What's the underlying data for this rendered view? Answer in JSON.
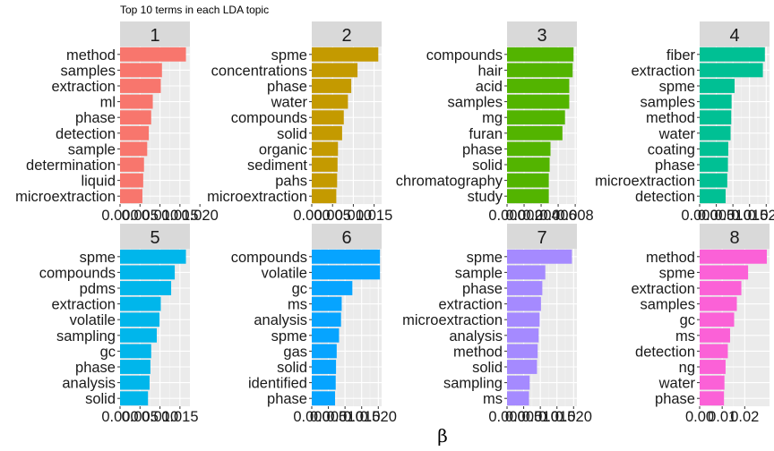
{
  "chart_data": {
    "type": "bar",
    "title": "Top 10 terms in each LDA topic",
    "xlabel": "β",
    "facets": [
      {
        "label": "1",
        "terms": [
          "method",
          "samples",
          "extraction",
          "ml",
          "phase",
          "detection",
          "sample",
          "determination",
          "liquid",
          "microextraction"
        ],
        "values": [
          0.0165,
          0.0105,
          0.0102,
          0.0082,
          0.0078,
          0.0072,
          0.0068,
          0.006,
          0.0058,
          0.0056
        ],
        "xlim": [
          0,
          0.0175
        ],
        "ticks": [
          0.0,
          0.005,
          0.01,
          0.015,
          0.02
        ],
        "tick_labels": [
          "0.000",
          "0.005",
          "0.010",
          "0.015",
          "0.020"
        ],
        "color": "#F8766D"
      },
      {
        "label": "2",
        "terms": [
          "spme",
          "concentrations",
          "phase",
          "water",
          "compounds",
          "solid",
          "organic",
          "sediment",
          "pahs",
          "microextraction"
        ],
        "values": [
          0.016,
          0.011,
          0.0095,
          0.0087,
          0.0077,
          0.0073,
          0.0063,
          0.0062,
          0.0061,
          0.0059
        ],
        "xlim": [
          0,
          0.0168
        ],
        "ticks": [
          0.0,
          0.005,
          0.01,
          0.015
        ],
        "tick_labels": [
          "0.000",
          "0.005",
          "0.010",
          "0.015"
        ],
        "color": "#C49A00"
      },
      {
        "label": "3",
        "terms": [
          "compounds",
          "hair",
          "acid",
          "samples",
          "mg",
          "furan",
          "phase",
          "solid",
          "chromatography",
          "study"
        ],
        "values": [
          0.0078,
          0.0077,
          0.0073,
          0.0073,
          0.0068,
          0.0065,
          0.0051,
          0.005,
          0.0049,
          0.0049
        ],
        "xlim": [
          0,
          0.0082
        ],
        "ticks": [
          0.0,
          0.002,
          0.004,
          0.006,
          0.008
        ],
        "tick_labels": [
          "0.000",
          "0.002",
          "0.004",
          "0.006",
          "0.008"
        ],
        "color": "#53B400"
      },
      {
        "label": "4",
        "terms": [
          "fiber",
          "extraction",
          "spme",
          "samples",
          "method",
          "water",
          "coating",
          "phase",
          "microextraction",
          "detection"
        ],
        "values": [
          0.0196,
          0.019,
          0.0105,
          0.0096,
          0.0095,
          0.0093,
          0.0086,
          0.0085,
          0.0083,
          0.0078
        ],
        "xlim": [
          0,
          0.021
        ],
        "ticks": [
          0.0,
          0.005,
          0.01,
          0.015,
          0.02
        ],
        "tick_labels": [
          "0.000",
          "0.005",
          "0.010",
          "0.015",
          "0.020"
        ],
        "color": "#00C094"
      },
      {
        "label": "5",
        "terms": [
          "spme",
          "compounds",
          "pdms",
          "extraction",
          "volatile",
          "sampling",
          "gc",
          "phase",
          "analysis",
          "solid"
        ],
        "values": [
          0.0165,
          0.0137,
          0.0128,
          0.0102,
          0.0099,
          0.0092,
          0.0078,
          0.0076,
          0.0074,
          0.007
        ],
        "xlim": [
          0,
          0.0175
        ],
        "ticks": [
          0.0,
          0.005,
          0.01,
          0.015
        ],
        "tick_labels": [
          "0.000",
          "0.005",
          "0.010",
          "0.015"
        ],
        "color": "#00B6EB"
      },
      {
        "label": "6",
        "terms": [
          "compounds",
          "volatile",
          "gc",
          "ms",
          "analysis",
          "spme",
          "gas",
          "solid",
          "identified",
          "phase"
        ],
        "values": [
          0.0205,
          0.0205,
          0.0122,
          0.009,
          0.0088,
          0.0082,
          0.0075,
          0.0073,
          0.0072,
          0.007
        ],
        "xlim": [
          0,
          0.021
        ],
        "ticks": [
          0.0,
          0.005,
          0.01,
          0.015,
          0.02
        ],
        "tick_labels": [
          "0.000",
          "0.005",
          "0.010",
          "0.015",
          "0.020"
        ],
        "color": "#06A4FF"
      },
      {
        "label": "7",
        "terms": [
          "spme",
          "sample",
          "phase",
          "extraction",
          "microextraction",
          "analysis",
          "method",
          "solid",
          "sampling",
          "ms"
        ],
        "values": [
          0.0195,
          0.0115,
          0.0106,
          0.0102,
          0.0098,
          0.0095,
          0.0092,
          0.009,
          0.0068,
          0.0066
        ],
        "xlim": [
          0,
          0.021
        ],
        "ticks": [
          0.0,
          0.005,
          0.01,
          0.015,
          0.02
        ],
        "tick_labels": [
          "0.000",
          "0.005",
          "0.010",
          "0.015",
          "0.020"
        ],
        "color": "#A58AFF"
      },
      {
        "label": "8",
        "terms": [
          "method",
          "spme",
          "extraction",
          "samples",
          "gc",
          "ms",
          "detection",
          "ng",
          "water",
          "phase"
        ],
        "values": [
          0.0298,
          0.0215,
          0.0185,
          0.0165,
          0.0153,
          0.0135,
          0.0125,
          0.0115,
          0.011,
          0.0108
        ],
        "xlim": [
          0,
          0.031
        ],
        "ticks": [
          0.0,
          0.01,
          0.02
        ],
        "tick_labels": [
          "0.00",
          "0.01",
          "0.02"
        ],
        "color": "#FB61D7"
      }
    ]
  }
}
